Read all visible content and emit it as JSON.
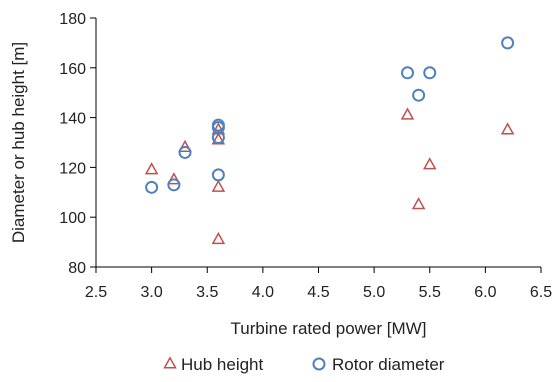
{
  "chart_data": {
    "type": "scatter",
    "xlabel": "Turbine rated power [MW]",
    "ylabel": "Diameter or hub height [m]",
    "xlim": [
      2.5,
      6.5
    ],
    "ylim": [
      80,
      180
    ],
    "x_ticks": [
      2.5,
      3.0,
      3.5,
      4.0,
      4.5,
      5.0,
      5.5,
      6.0,
      6.5
    ],
    "x_tick_labels": [
      "2.5",
      "3.0",
      "3.5",
      "4.0",
      "4.5",
      "5.0",
      "5.5",
      "6.0",
      "6.5"
    ],
    "y_ticks": [
      80,
      100,
      120,
      140,
      160,
      180
    ],
    "y_tick_labels": [
      "80",
      "100",
      "120",
      "140",
      "160",
      "180"
    ],
    "grid": false,
    "legend_position": "bottom",
    "series": [
      {
        "name": "Hub height",
        "marker": "triangle",
        "color": "#c0504d",
        "points": [
          {
            "x": 3.0,
            "y": 119
          },
          {
            "x": 3.2,
            "y": 115
          },
          {
            "x": 3.3,
            "y": 128
          },
          {
            "x": 3.6,
            "y": 135
          },
          {
            "x": 3.6,
            "y": 131
          },
          {
            "x": 3.6,
            "y": 112
          },
          {
            "x": 3.6,
            "y": 91
          },
          {
            "x": 5.3,
            "y": 141
          },
          {
            "x": 5.4,
            "y": 105
          },
          {
            "x": 5.5,
            "y": 121
          },
          {
            "x": 6.2,
            "y": 135
          }
        ]
      },
      {
        "name": "Rotor diameter",
        "marker": "circle",
        "color": "#4f81bd",
        "points": [
          {
            "x": 3.0,
            "y": 112
          },
          {
            "x": 3.2,
            "y": 113
          },
          {
            "x": 3.3,
            "y": 126
          },
          {
            "x": 3.6,
            "y": 137
          },
          {
            "x": 3.6,
            "y": 136
          },
          {
            "x": 3.6,
            "y": 132
          },
          {
            "x": 3.6,
            "y": 117
          },
          {
            "x": 5.3,
            "y": 158
          },
          {
            "x": 5.4,
            "y": 149
          },
          {
            "x": 5.5,
            "y": 158
          },
          {
            "x": 6.2,
            "y": 170
          }
        ]
      }
    ]
  }
}
